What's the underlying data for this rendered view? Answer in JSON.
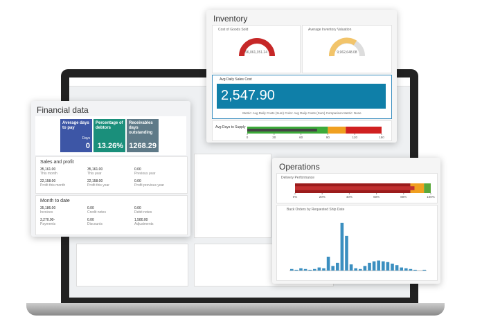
{
  "inventory": {
    "title": "Inventory",
    "gauge1": {
      "label": "Cost of Goods Sold",
      "value": "96,061,351.24"
    },
    "gauge2": {
      "label": "Average Inventory Valuation",
      "value": "9,962,648.08"
    },
    "kpi": {
      "label": "Avg Daily Sales Cost",
      "value": "2,547.90",
      "footer": "Metric: Avg Daily Costs (Sum)   Color: Avg Daily Costs (Sum)   Comparison Metric: None"
    },
    "supply": {
      "type": "bullet",
      "label": "Avg Days to Supply",
      "xlim": [
        0,
        150
      ],
      "xticks": [
        0,
        30,
        60,
        90,
        120,
        150
      ],
      "bands": [
        90,
        110,
        150
      ],
      "band_colors": [
        "#3daa3a",
        "#f0a020",
        "#d02020"
      ],
      "value": 78,
      "color": "#444"
    }
  },
  "financial": {
    "title": "Financial data",
    "tiles": [
      {
        "label": "Average days to pay",
        "unit": "Days",
        "value": "0",
        "color": "#3d56a6"
      },
      {
        "label": "Percentage of debtors",
        "value": "13.26%",
        "color": "#1a8f7b"
      },
      {
        "label": "Receivables days outstanding",
        "value": "1268.29",
        "color": "#5f7a88"
      }
    ],
    "sales": {
      "title": "Sales and profit",
      "cells": [
        [
          "35,161.00",
          "This month"
        ],
        [
          "35,161.00",
          "This year"
        ],
        [
          "0.00",
          "Previous year"
        ],
        [
          "22,158.00",
          "Profit this month"
        ],
        [
          "22,158.00",
          "Profit this year"
        ],
        [
          "0.00",
          "Profit previous year"
        ]
      ]
    },
    "mtd": {
      "title": "Month to date",
      "cells": [
        [
          "35,186.00",
          "Invoices"
        ],
        [
          "0.00",
          "Credit notes"
        ],
        [
          "0.00",
          "Debit notes"
        ],
        [
          "3,270.00-",
          "Payments"
        ],
        [
          "0.00",
          "Discounts"
        ],
        [
          "1,580.00",
          "Adjustments"
        ]
      ]
    }
  },
  "operations": {
    "title": "Operations",
    "delivery": {
      "type": "bullet",
      "label": "Delivery Performance",
      "xlim": [
        0,
        100
      ],
      "xticks": [
        {
          "value": 0,
          "label": "0%"
        },
        {
          "value": 20,
          "label": "20%"
        },
        {
          "value": 40,
          "label": "40%"
        },
        {
          "value": 60,
          "label": "60%"
        },
        {
          "value": 80,
          "label": "80%"
        },
        {
          "value": 100,
          "label": "100%"
        }
      ],
      "bands": [
        85,
        95,
        100
      ],
      "band_colors": [
        "#9b1c1c",
        "#f0a020",
        "#5aa83a"
      ],
      "value": 88,
      "color": "#c03030"
    },
    "backorders": {
      "type": "bar",
      "label": "Back Orders by Requested Ship Date",
      "ylim": [
        0,
        70
      ],
      "color": "#3b8fc0",
      "values": [
        2,
        1,
        3,
        2,
        1,
        2,
        4,
        3,
        18,
        6,
        10,
        62,
        45,
        8,
        3,
        2,
        6,
        10,
        12,
        13,
        12,
        11,
        9,
        7,
        4,
        3,
        2,
        1,
        0,
        1
      ]
    }
  }
}
